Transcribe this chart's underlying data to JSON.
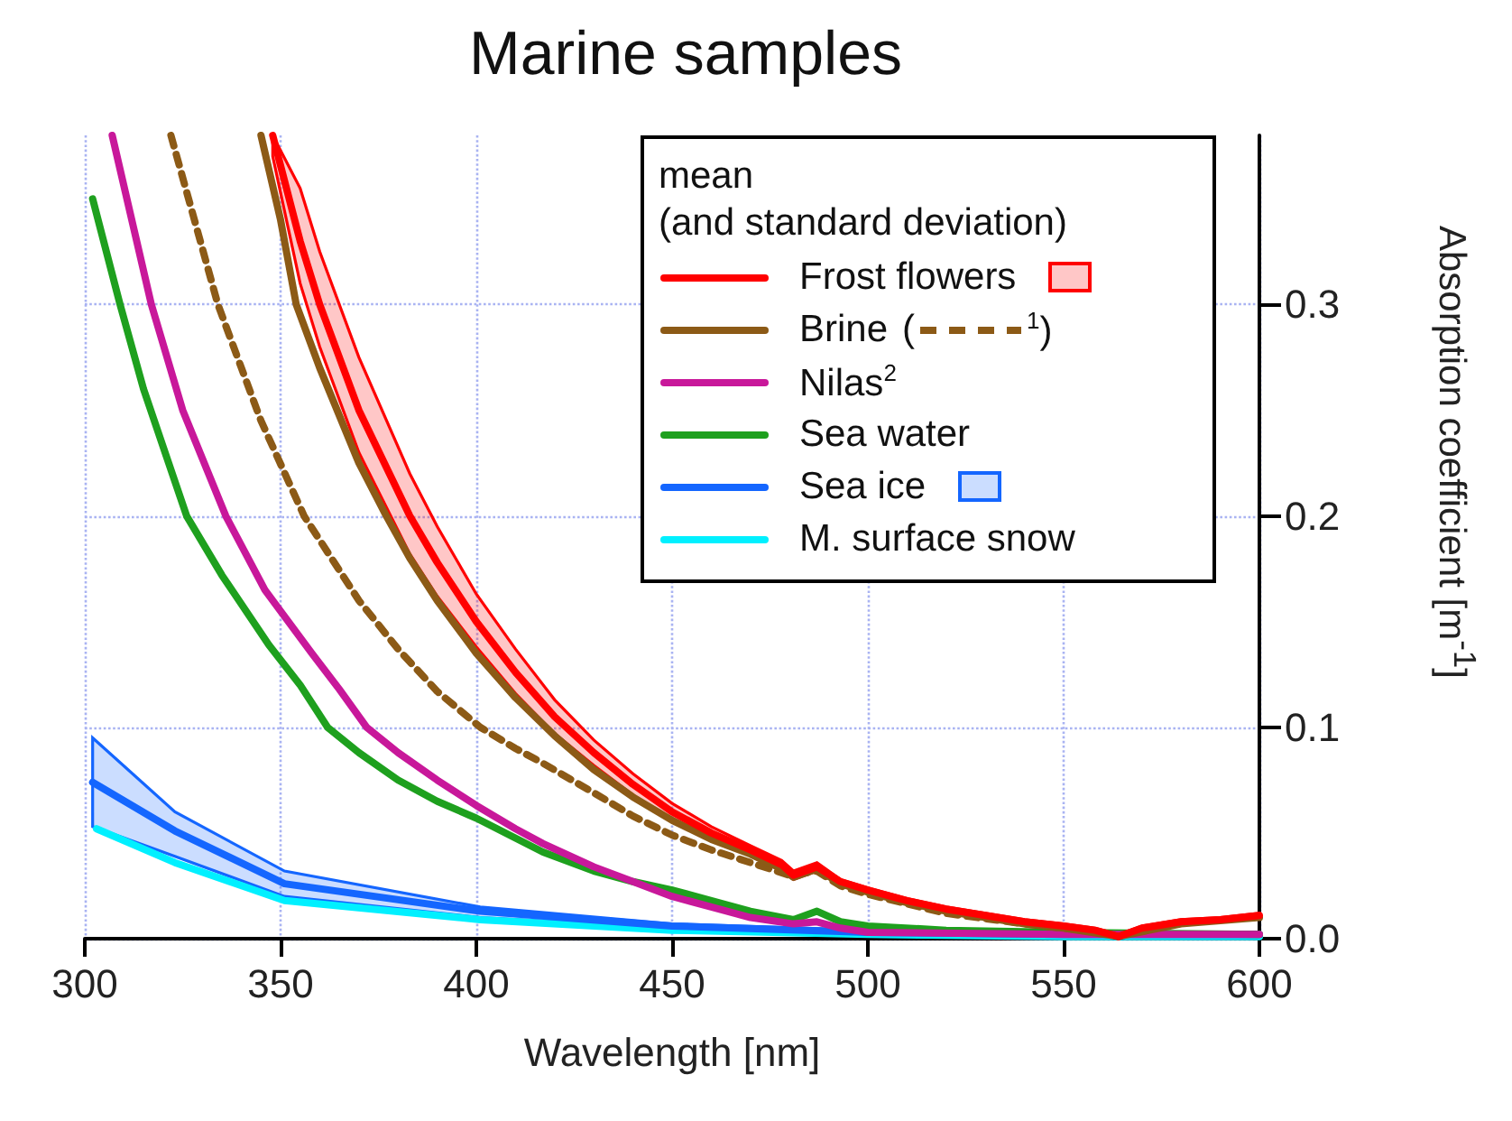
{
  "chart_data": {
    "type": "line",
    "title": "Marine samples",
    "xlabel": "Wavelength [nm]",
    "ylabel": "Absorption coefficient [m$^{-1}$]",
    "legend_title": "mean\n(and standard deviation)",
    "xlim": [
      300,
      600
    ],
    "xticks": [
      300,
      350,
      400,
      450,
      500,
      550,
      600
    ],
    "ylim": [
      0,
      0.38
    ],
    "yticks": [
      {
        "value": 0,
        "label": "0.0"
      },
      {
        "value": 0.1,
        "label": "0.1"
      },
      {
        "value": 0.2,
        "label": "0.2"
      },
      {
        "value": 0.3,
        "label": "0.3"
      }
    ],
    "grid": true,
    "legend": "top right",
    "marker": "none",
    "line_style": "solid",
    "series": [
      {
        "name": "Frost flowers",
        "color": "#ff0000",
        "x": [
          348,
          355,
          360,
          370,
          383,
          390,
          400,
          410,
          420,
          430,
          440,
          450,
          460,
          470,
          478,
          481,
          487,
          493,
          500,
          510,
          520,
          530,
          540,
          550,
          558,
          564,
          570,
          580,
          590,
          600
        ],
        "values": [
          0.38,
          0.33,
          0.3,
          0.25,
          0.2,
          0.178,
          0.15,
          0.126,
          0.105,
          0.088,
          0.073,
          0.06,
          0.05,
          0.042,
          0.035,
          0.03,
          0.034,
          0.027,
          0.023,
          0.018,
          0.014,
          0.011,
          0.008,
          0.006,
          0.004,
          0.001,
          0.005,
          0.008,
          0.009,
          0.011
        ],
        "lower": [
          0.37,
          0.31,
          0.28,
          0.23,
          0.182,
          0.162,
          0.138,
          0.116,
          0.097,
          0.082,
          0.068,
          0.056,
          0.047,
          0.04,
          0.033,
          0.028,
          0.032,
          0.026,
          0.022,
          0.017,
          0.013,
          0.01,
          0.007,
          0.005,
          0.003,
          0,
          0.004,
          0.007,
          0.008,
          0.01
        ],
        "upper": [
          0.38,
          0.355,
          0.325,
          0.275,
          0.22,
          0.195,
          0.163,
          0.137,
          0.113,
          0.094,
          0.078,
          0.064,
          0.053,
          0.044,
          0.037,
          0.032,
          0.036,
          0.028,
          0.024,
          0.019,
          0.015,
          0.012,
          0.009,
          0.007,
          0.005,
          0.002,
          0.006,
          0.009,
          0.01,
          0.012
        ]
      },
      {
        "name": "Brine",
        "color": "#8c5a16",
        "x": [
          345,
          350,
          354,
          360,
          370,
          377,
          383,
          390,
          400,
          410,
          420,
          430,
          440,
          450,
          460,
          470,
          478,
          481,
          487,
          493,
          500,
          510,
          520,
          530,
          540,
          550,
          564,
          580,
          600
        ],
        "values": [
          0.38,
          0.34,
          0.3,
          0.27,
          0.225,
          0.2,
          0.18,
          0.16,
          0.135,
          0.114,
          0.096,
          0.08,
          0.067,
          0.056,
          0.047,
          0.04,
          0.033,
          0.029,
          0.033,
          0.026,
          0.022,
          0.017,
          0.013,
          0.01,
          0.007,
          0.005,
          0.001,
          0.007,
          0.01
        ]
      },
      {
        "name": "($^{1}$)",
        "color": "#8c5a16",
        "line_style": "dashed",
        "x": [
          322,
          334,
          340,
          345,
          356,
          370,
          380,
          390,
          401,
          410,
          417,
          430,
          440,
          450,
          460,
          470,
          480,
          487,
          493,
          500,
          520,
          540,
          560
        ],
        "values": [
          0.38,
          0.3,
          0.27,
          0.245,
          0.2,
          0.16,
          0.137,
          0.117,
          0.1,
          0.09,
          0.083,
          0.069,
          0.058,
          0.049,
          0.042,
          0.036,
          0.03,
          0.032,
          0.025,
          0.021,
          0.012,
          0.007,
          0.003
        ]
      },
      {
        "name": "Nilas$^{2}$",
        "color": "#c8189a",
        "x": [
          307,
          317,
          325,
          336,
          346,
          358,
          365,
          372,
          380,
          390,
          400,
          410,
          417,
          430,
          440,
          450,
          460,
          470,
          481,
          487,
          493,
          500,
          550,
          600
        ],
        "values": [
          0.38,
          0.3,
          0.25,
          0.2,
          0.165,
          0.135,
          0.118,
          0.1,
          0.088,
          0.075,
          0.063,
          0.052,
          0.045,
          0.034,
          0.027,
          0.02,
          0.015,
          0.01,
          0.007,
          0.008,
          0.005,
          0.003,
          0.002,
          0.002
        ]
      },
      {
        "name": "Sea water",
        "color": "#1ea01e",
        "x": [
          302,
          309,
          315,
          326,
          335,
          347,
          355,
          362,
          370,
          380,
          390,
          400,
          417,
          430,
          440,
          450,
          460,
          470,
          481,
          487,
          493,
          500,
          520,
          550,
          600
        ],
        "values": [
          0.35,
          0.3,
          0.26,
          0.2,
          0.172,
          0.139,
          0.12,
          0.1,
          0.088,
          0.075,
          0.065,
          0.057,
          0.041,
          0.032,
          0.027,
          0.023,
          0.018,
          0.013,
          0.009,
          0.013,
          0.008,
          0.006,
          0.004,
          0.003,
          0.002
        ]
      },
      {
        "name": "Sea ice",
        "color": "#1466ff",
        "x": [
          302,
          323,
          351,
          401,
          450,
          500,
          550,
          600
        ],
        "values": [
          0.074,
          0.051,
          0.026,
          0.013,
          0.006,
          0.003,
          0.002,
          0.002
        ],
        "lower": [
          0.053,
          0.039,
          0.02,
          0.01,
          0.005,
          0.002,
          0.001,
          0.001
        ],
        "upper": [
          0.095,
          0.06,
          0.032,
          0.015,
          0.007,
          0.004,
          0.003,
          0.002
        ]
      },
      {
        "name": "M. surface snow",
        "color": "#00f0ff",
        "x": [
          303,
          323,
          351,
          401,
          450,
          500,
          550,
          600
        ],
        "values": [
          0.052,
          0.036,
          0.018,
          0.009,
          0.004,
          0.002,
          0.001,
          0.001
        ]
      }
    ]
  }
}
